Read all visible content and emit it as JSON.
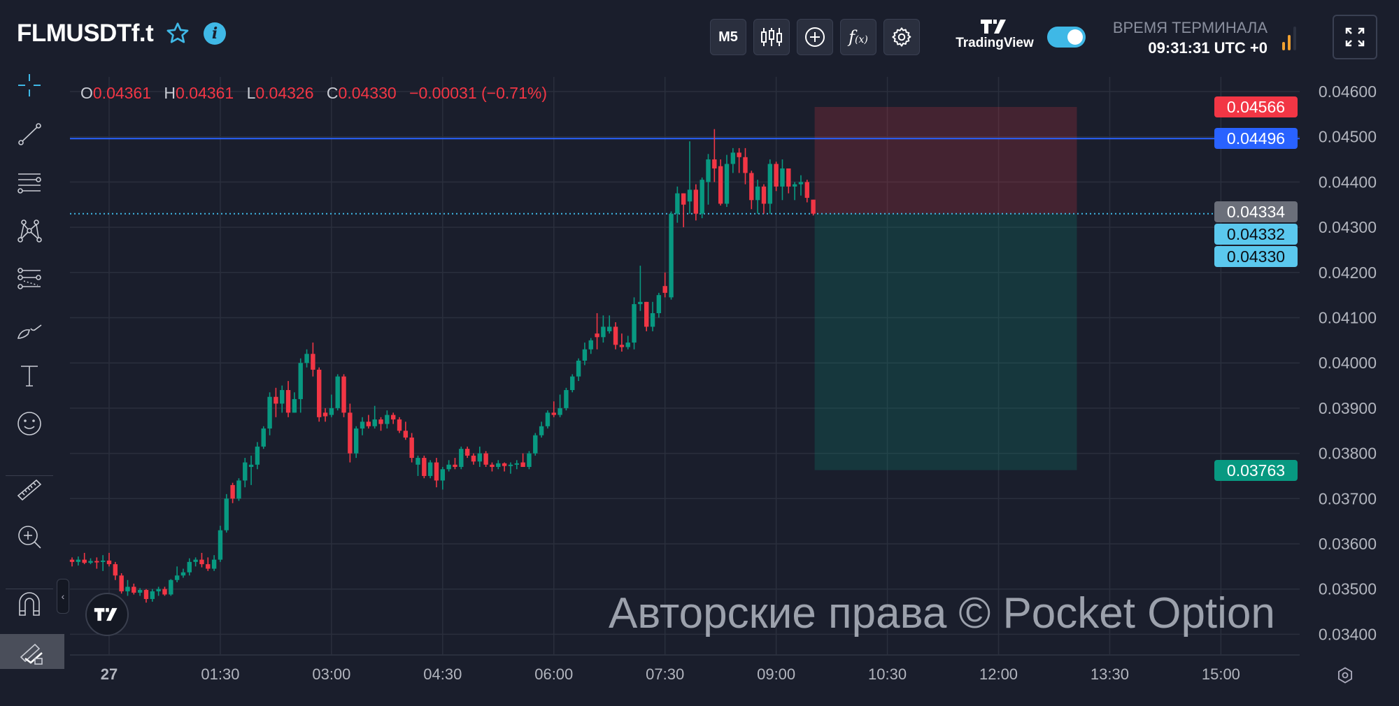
{
  "header": {
    "symbol": "FLMUSDTf.t",
    "timeframe_label": "M5",
    "brand": "TradingView",
    "terminal_time_label": "ВРЕМЯ ТЕРМИНАЛА",
    "terminal_time": "09:31:31 UTC +0",
    "tradingview_toggle_on": true
  },
  "ohlc": {
    "o_label": "O",
    "o": "0.04361",
    "h_label": "H",
    "h": "0.04361",
    "l_label": "L",
    "l": "0.04326",
    "c_label": "C",
    "c": "0.04330",
    "change": "−0.00031 (−0.71%)"
  },
  "toolbar_icons": [
    "crosshair-icon",
    "trend-line-icon",
    "parallel-channel-icon",
    "pattern-icon",
    "fib-icon",
    "brush-icon",
    "text-icon",
    "emoji-icon",
    "ruler-icon",
    "zoom-in-icon",
    "magnet-icon",
    "lock-drawings-icon"
  ],
  "price_badges": [
    {
      "value": "0.04566",
      "price": 0.04566,
      "bg": "#f23645",
      "fg": "#ffffff"
    },
    {
      "value": "0.04496",
      "price": 0.04496,
      "bg": "#2962ff",
      "fg": "#ffffff"
    },
    {
      "value": "0.04334",
      "price": 0.04334,
      "bg": "#6b6f7a",
      "fg": "#ffffff"
    },
    {
      "value": "0.04332",
      "price": 0.04332,
      "bg": "#5bc8ee",
      "fg": "#0b0e14"
    },
    {
      "value": "0.04330",
      "price": 0.0433,
      "bg": "#5bc8ee",
      "fg": "#0b0e14"
    },
    {
      "value": "0.03763",
      "price": 0.03763,
      "bg": "#089981",
      "fg": "#ffffff"
    }
  ],
  "watermark": "Авторские права © Pocket Option",
  "colors": {
    "up": "#089981",
    "down": "#f23645",
    "background": "#1a1e2c",
    "grid": "#2a2f3d",
    "accent": "#3fb8e6",
    "level_line": "#2962ff"
  },
  "chart_data": {
    "type": "candlestick",
    "interval": "M5",
    "ylim": [
      0.034,
      0.046
    ],
    "y_ticks": [
      "0.03400",
      "0.03500",
      "0.03600",
      "0.03700",
      "0.03800",
      "0.03900",
      "0.04000",
      "0.04100",
      "0.04200",
      "0.04300",
      "0.04400",
      "0.04500",
      "0.04600"
    ],
    "x_ticks": [
      "27",
      "01:30",
      "03:00",
      "04:30",
      "06:00",
      "07:30",
      "09:00",
      "10:30",
      "12:00",
      "13:30",
      "15:00"
    ],
    "grid": true,
    "horizontal_line": 0.04496,
    "current_price_line": 0.0433,
    "position_tool": {
      "stop": 0.04566,
      "entry": 0.0433,
      "target": 0.03763,
      "from": "09:30",
      "to": "13:00"
    },
    "candles": [
      [
        "23:30",
        0.03565,
        0.0357,
        0.0355,
        0.0356
      ],
      [
        "23:35",
        0.0356,
        0.03572,
        0.03552,
        0.03565
      ],
      [
        "23:40",
        0.03565,
        0.0358,
        0.03555,
        0.03558
      ],
      [
        "23:45",
        0.03558,
        0.03568,
        0.03555,
        0.03562
      ],
      [
        "23:50",
        0.03562,
        0.0357,
        0.03545,
        0.0356
      ],
      [
        "23:55",
        0.0356,
        0.03575,
        0.0354,
        0.03563
      ],
      [
        "00:00",
        0.03563,
        0.0358,
        0.0355,
        0.03555
      ],
      [
        "00:05",
        0.03555,
        0.0356,
        0.0352,
        0.0353
      ],
      [
        "00:10",
        0.0353,
        0.03535,
        0.0349,
        0.03495
      ],
      [
        "00:15",
        0.03495,
        0.0352,
        0.03485,
        0.03505
      ],
      [
        "00:20",
        0.03505,
        0.03512,
        0.03488,
        0.03492
      ],
      [
        "00:25",
        0.03492,
        0.03502,
        0.03485,
        0.03498
      ],
      [
        "00:30",
        0.03498,
        0.035,
        0.0347,
        0.03478
      ],
      [
        "00:35",
        0.03478,
        0.035,
        0.03472,
        0.03495
      ],
      [
        "00:40",
        0.03495,
        0.03505,
        0.03485,
        0.035
      ],
      [
        "00:45",
        0.035,
        0.03505,
        0.03485,
        0.03488
      ],
      [
        "00:50",
        0.03488,
        0.03522,
        0.03485,
        0.0352
      ],
      [
        "00:55",
        0.0352,
        0.0355,
        0.03515,
        0.0353
      ],
      [
        "01:00",
        0.0353,
        0.03545,
        0.03525,
        0.03537
      ],
      [
        "01:05",
        0.03537,
        0.03568,
        0.0353,
        0.0356
      ],
      [
        "01:10",
        0.0356,
        0.0357,
        0.0355,
        0.03565
      ],
      [
        "01:15",
        0.03565,
        0.0358,
        0.03548,
        0.03555
      ],
      [
        "01:20",
        0.03555,
        0.0357,
        0.0354,
        0.03545
      ],
      [
        "01:25",
        0.03545,
        0.03575,
        0.0354,
        0.03565
      ],
      [
        "01:30",
        0.03565,
        0.0364,
        0.0356,
        0.0363
      ],
      [
        "01:35",
        0.0363,
        0.0371,
        0.03625,
        0.037
      ],
      [
        "01:40",
        0.0373,
        0.03735,
        0.0369,
        0.037
      ],
      [
        "01:45",
        0.037,
        0.03745,
        0.03695,
        0.0374
      ],
      [
        "01:50",
        0.0374,
        0.0379,
        0.03725,
        0.0378
      ],
      [
        "01:55",
        0.0377,
        0.03795,
        0.0373,
        0.03775
      ],
      [
        "02:00",
        0.03775,
        0.03825,
        0.03765,
        0.03815
      ],
      [
        "02:05",
        0.03815,
        0.0386,
        0.0381,
        0.03855
      ],
      [
        "02:10",
        0.03855,
        0.03935,
        0.0384,
        0.03925
      ],
      [
        "02:15",
        0.03925,
        0.03945,
        0.0388,
        0.0391
      ],
      [
        "02:20",
        0.0391,
        0.0395,
        0.0389,
        0.0394
      ],
      [
        "02:25",
        0.0394,
        0.0396,
        0.0388,
        0.0389
      ],
      [
        "02:30",
        0.0389,
        0.03935,
        0.0389,
        0.0392
      ],
      [
        "02:35",
        0.0392,
        0.0401,
        0.0389,
        0.04
      ],
      [
        "02:40",
        0.04,
        0.0403,
        0.0399,
        0.0402
      ],
      [
        "02:45",
        0.0402,
        0.04045,
        0.0397,
        0.03985
      ],
      [
        "02:50",
        0.03985,
        0.0399,
        0.0387,
        0.0388
      ],
      [
        "02:55",
        0.0389,
        0.039,
        0.0387,
        0.03882
      ],
      [
        "03:00",
        0.03885,
        0.0393,
        0.0388,
        0.039
      ],
      [
        "03:05",
        0.039,
        0.03975,
        0.03895,
        0.0397
      ],
      [
        "03:10",
        0.0397,
        0.03975,
        0.0388,
        0.0389
      ],
      [
        "03:15",
        0.0389,
        0.0391,
        0.0378,
        0.038
      ],
      [
        "03:20",
        0.038,
        0.0386,
        0.0379,
        0.03855
      ],
      [
        "03:25",
        0.03855,
        0.0388,
        0.0384,
        0.0387
      ],
      [
        "03:30",
        0.0387,
        0.03885,
        0.03855,
        0.0386
      ],
      [
        "03:35",
        0.0386,
        0.03905,
        0.03855,
        0.03875
      ],
      [
        "03:40",
        0.03875,
        0.0388,
        0.0385,
        0.03865
      ],
      [
        "03:45",
        0.03865,
        0.03895,
        0.03855,
        0.03885
      ],
      [
        "03:50",
        0.03885,
        0.0389,
        0.03865,
        0.03875
      ],
      [
        "03:55",
        0.03875,
        0.0388,
        0.03845,
        0.0385
      ],
      [
        "04:00",
        0.0385,
        0.0387,
        0.0383,
        0.03835
      ],
      [
        "04:05",
        0.03835,
        0.03845,
        0.0378,
        0.0379
      ],
      [
        "04:10",
        0.03775,
        0.03795,
        0.0375,
        0.0379
      ],
      [
        "04:15",
        0.0379,
        0.03795,
        0.03745,
        0.0375
      ],
      [
        "04:20",
        0.0375,
        0.03785,
        0.03745,
        0.0378
      ],
      [
        "04:25",
        0.0378,
        0.0379,
        0.03725,
        0.0374
      ],
      [
        "04:30",
        0.0374,
        0.0377,
        0.0372,
        0.03765
      ],
      [
        "04:35",
        0.03765,
        0.03785,
        0.0376,
        0.03775
      ],
      [
        "04:40",
        0.03775,
        0.0379,
        0.03765,
        0.0377
      ],
      [
        "04:45",
        0.0377,
        0.03815,
        0.03765,
        0.0381
      ],
      [
        "04:50",
        0.0381,
        0.03815,
        0.0379,
        0.03795
      ],
      [
        "04:55",
        0.03795,
        0.038,
        0.03775,
        0.03782
      ],
      [
        "05:00",
        0.03782,
        0.03815,
        0.0377,
        0.038
      ],
      [
        "05:05",
        0.038,
        0.03805,
        0.0377,
        0.03775
      ],
      [
        "05:10",
        0.03775,
        0.0378,
        0.0376,
        0.0377
      ],
      [
        "05:15",
        0.0377,
        0.03785,
        0.03765,
        0.03778
      ],
      [
        "05:20",
        0.03778,
        0.0378,
        0.0376,
        0.03772
      ],
      [
        "05:25",
        0.03772,
        0.0378,
        0.03755,
        0.03775
      ],
      [
        "05:30",
        0.03775,
        0.03785,
        0.03765,
        0.03778
      ],
      [
        "05:35",
        0.0378,
        0.038,
        0.0377,
        0.0377
      ],
      [
        "05:40",
        0.0377,
        0.03805,
        0.03765,
        0.038
      ],
      [
        "05:45",
        0.038,
        0.03845,
        0.03795,
        0.0384
      ],
      [
        "05:50",
        0.0384,
        0.0387,
        0.03835,
        0.0386
      ],
      [
        "05:55",
        0.0386,
        0.03895,
        0.03855,
        0.0389
      ],
      [
        "06:00",
        0.0389,
        0.03915,
        0.0388,
        0.03885
      ],
      [
        "06:05",
        0.03885,
        0.0393,
        0.0388,
        0.039
      ],
      [
        "06:10",
        0.039,
        0.03945,
        0.03895,
        0.0394
      ],
      [
        "06:15",
        0.0394,
        0.03975,
        0.03935,
        0.0397
      ],
      [
        "06:20",
        0.0397,
        0.0401,
        0.0396,
        0.04005
      ],
      [
        "06:25",
        0.04005,
        0.04045,
        0.03995,
        0.0403
      ],
      [
        "06:30",
        0.0403,
        0.04055,
        0.0402,
        0.0405
      ],
      [
        "06:35",
        0.04065,
        0.0411,
        0.0403,
        0.04057
      ],
      [
        "06:40",
        0.04057,
        0.04105,
        0.04045,
        0.0408
      ],
      [
        "06:45",
        0.0407,
        0.04105,
        0.04065,
        0.0408
      ],
      [
        "06:50",
        0.0408,
        0.0409,
        0.0403,
        0.0404
      ],
      [
        "06:55",
        0.0404,
        0.04065,
        0.04025,
        0.04035
      ],
      [
        "07:00",
        0.04035,
        0.0406,
        0.0403,
        0.04045
      ],
      [
        "07:05",
        0.04045,
        0.04145,
        0.0403,
        0.0413
      ],
      [
        "07:10",
        0.0413,
        0.04215,
        0.04115,
        0.04135
      ],
      [
        "07:15",
        0.04135,
        0.04135,
        0.0407,
        0.0408
      ],
      [
        "07:20",
        0.0408,
        0.04135,
        0.0407,
        0.0411
      ],
      [
        "07:25",
        0.0411,
        0.04155,
        0.041,
        0.0415
      ],
      [
        "07:30",
        0.0417,
        0.042,
        0.04145,
        0.04155
      ],
      [
        "07:35",
        0.04145,
        0.04335,
        0.0414,
        0.0433
      ],
      [
        "07:40",
        0.0433,
        0.0439,
        0.0431,
        0.04375
      ],
      [
        "07:45",
        0.04375,
        0.04375,
        0.043,
        0.0435
      ],
      [
        "07:50",
        0.04357,
        0.0449,
        0.0433,
        0.04383
      ],
      [
        "07:55",
        0.04383,
        0.04395,
        0.04315,
        0.0433
      ],
      [
        "08:00",
        0.0433,
        0.0441,
        0.0432,
        0.04405
      ],
      [
        "08:05",
        0.044,
        0.04462,
        0.0435,
        0.0445
      ],
      [
        "08:10",
        0.0445,
        0.04517,
        0.044,
        0.0443
      ],
      [
        "08:15",
        0.04435,
        0.0445,
        0.04348,
        0.04352
      ],
      [
        "08:20",
        0.04352,
        0.0446,
        0.04345,
        0.0444
      ],
      [
        "08:25",
        0.0444,
        0.04475,
        0.0442,
        0.04465
      ],
      [
        "08:30",
        0.04465,
        0.04475,
        0.0442,
        0.04455
      ],
      [
        "08:35",
        0.04455,
        0.04475,
        0.04395,
        0.0442
      ],
      [
        "08:40",
        0.0442,
        0.04425,
        0.0434,
        0.0436
      ],
      [
        "08:45",
        0.0436,
        0.04405,
        0.0433,
        0.0439
      ],
      [
        "08:50",
        0.0439,
        0.04395,
        0.0433,
        0.04352
      ],
      [
        "08:55",
        0.04352,
        0.0445,
        0.0433,
        0.0444
      ],
      [
        "09:00",
        0.0444,
        0.04445,
        0.0438,
        0.0439
      ],
      [
        "09:05",
        0.0439,
        0.0445,
        0.0436,
        0.0443
      ],
      [
        "09:10",
        0.0443,
        0.0443,
        0.04375,
        0.0439
      ],
      [
        "09:15",
        0.0439,
        0.044,
        0.0436,
        0.04395
      ],
      [
        "09:20",
        0.04395,
        0.04415,
        0.0437,
        0.044
      ],
      [
        "09:25",
        0.044,
        0.04405,
        0.04355,
        0.04365
      ],
      [
        "09:30",
        0.04361,
        0.04361,
        0.04326,
        0.0433
      ]
    ]
  }
}
